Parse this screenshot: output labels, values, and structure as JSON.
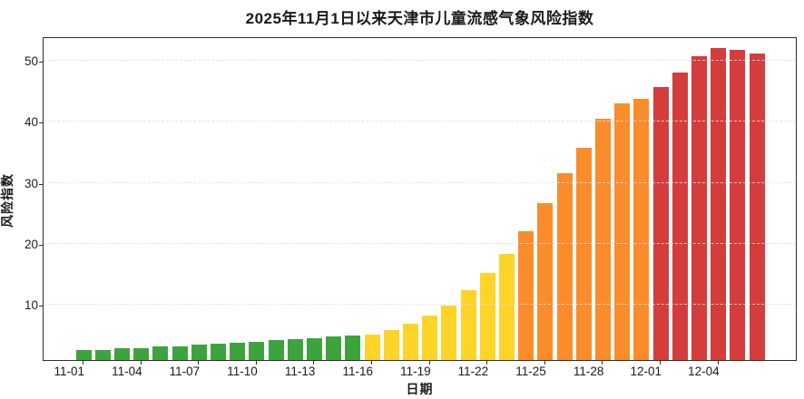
{
  "chart_data": {
    "type": "bar",
    "title": "2025年11月1日以来天津市儿童流感气象风险指数",
    "xlabel": "日期",
    "ylabel": "风险指数",
    "ylim": [
      1,
      54
    ],
    "yticks": [
      10,
      20,
      30,
      40,
      50
    ],
    "grid": "horizontal-dashed",
    "legend": "none",
    "x_tick_labels": [
      "11-01",
      "11-04",
      "11-07",
      "11-10",
      "11-13",
      "11-16",
      "11-19",
      "11-22",
      "11-25",
      "11-28",
      "12-01",
      "12-04"
    ],
    "x_tick_indices": [
      0,
      3,
      6,
      9,
      12,
      15,
      18,
      21,
      24,
      27,
      30,
      33
    ],
    "categories": [
      "11-01",
      "11-02",
      "11-03",
      "11-04",
      "11-05",
      "11-06",
      "11-07",
      "11-08",
      "11-09",
      "11-10",
      "11-11",
      "11-12",
      "11-13",
      "11-14",
      "11-15",
      "11-16",
      "11-17",
      "11-18",
      "11-19",
      "11-20",
      "11-21",
      "11-22",
      "11-23",
      "11-24",
      "11-25",
      "11-26",
      "11-27",
      "11-28",
      "11-29",
      "11-30",
      "12-01",
      "12-02",
      "12-03",
      "12-04",
      "12-05",
      "12-06"
    ],
    "values": [
      2.6,
      2.6,
      2.9,
      3.0,
      3.2,
      3.3,
      3.5,
      3.7,
      3.8,
      4.0,
      4.2,
      4.4,
      4.6,
      4.8,
      5.0,
      5.2,
      5.9,
      7.0,
      8.3,
      9.9,
      12.5,
      15.3,
      18.4,
      22.1,
      26.7,
      31.6,
      35.8,
      40.5,
      43.0,
      43.7,
      45.7,
      48.1,
      50.7,
      52.1,
      51.8,
      51.2
    ],
    "levels": [
      "green",
      "green",
      "green",
      "green",
      "green",
      "green",
      "green",
      "green",
      "green",
      "green",
      "green",
      "green",
      "green",
      "green",
      "green",
      "yellow",
      "yellow",
      "yellow",
      "yellow",
      "yellow",
      "yellow",
      "yellow",
      "yellow",
      "orange",
      "orange",
      "orange",
      "orange",
      "orange",
      "orange",
      "orange",
      "red",
      "red",
      "red",
      "red",
      "red",
      "red"
    ],
    "palette": {
      "green": "#3DA43D",
      "yellow": "#FFD428",
      "orange": "#FB8C2B",
      "red": "#D53C3C"
    },
    "colors_meta": {
      "grid": "#e2e2e2",
      "spine": "#2e2e2e",
      "text": "#1a1a1a"
    }
  }
}
